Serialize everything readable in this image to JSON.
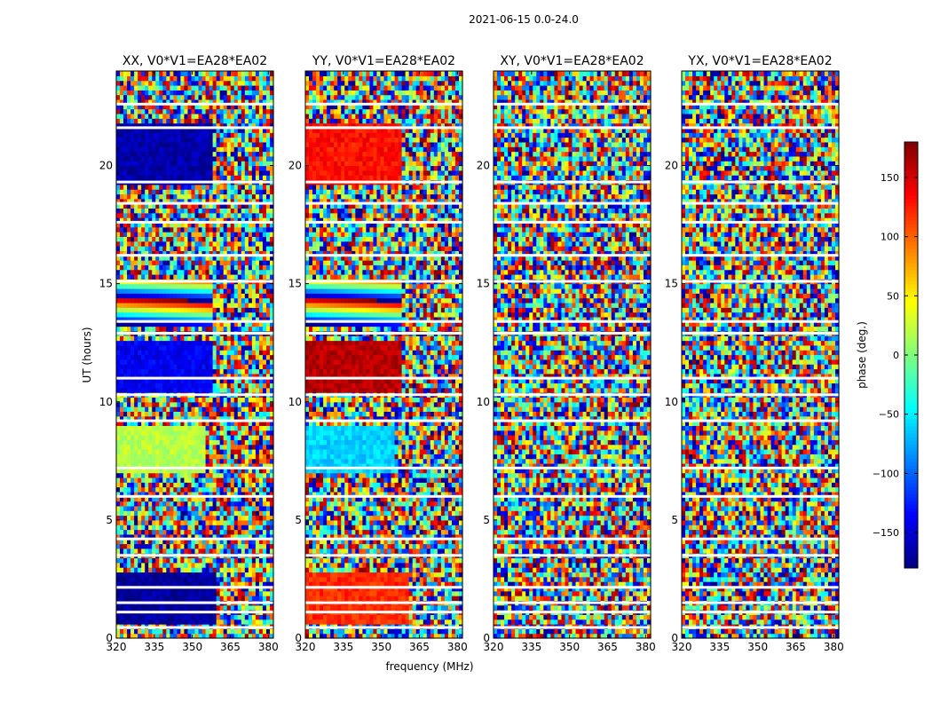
{
  "figure": {
    "suptitle": "2021-06-15 0.0-24.0",
    "ylabel": "UT (hours)",
    "xlabel": "frequency (MHz)"
  },
  "chart_data": {
    "type": "heatmap",
    "x": {
      "label": "frequency (MHz)",
      "range": [
        320,
        382
      ],
      "ticks": [
        320,
        335,
        350,
        365,
        380
      ]
    },
    "y": {
      "label": "UT (hours)",
      "range": [
        0,
        24
      ],
      "ticks": [
        0,
        5,
        10,
        15,
        20
      ]
    },
    "colorbar": {
      "label": "phase (deg.)",
      "range": [
        -180,
        180
      ],
      "ticks": [
        -150,
        -100,
        -50,
        0,
        50,
        100,
        150
      ],
      "colormap": "jet",
      "colors": [
        "#00007f",
        "#0000ff",
        "#007fff",
        "#00ffff",
        "#7fff7f",
        "#ffff00",
        "#ff7f00",
        "#ff0000",
        "#7f0000"
      ]
    },
    "panels": [
      {
        "title": "XX, V0*V1=EA28*EA02",
        "pol": "XX"
      },
      {
        "title": "YY, V0*V1=EA28*EA02",
        "pol": "YY"
      },
      {
        "title": "XY, V0*V1=EA28*EA02",
        "pol": "XY"
      },
      {
        "title": "YX, V0*V1=EA28*EA02",
        "pol": "YX"
      }
    ],
    "coherent_regions": [
      {
        "pol": "XX",
        "ut": [
          0.7,
          2.7
        ],
        "freq": [
          320,
          360
        ],
        "phase": -170
      },
      {
        "pol": "YY",
        "ut": [
          0.7,
          2.7
        ],
        "freq": [
          320,
          361
        ],
        "phase": 120
      },
      {
        "pol": "XX",
        "ut": [
          13.3,
          15.1
        ],
        "freq": [
          320,
          358
        ],
        "phase": "wrap"
      },
      {
        "pol": "YY",
        "ut": [
          13.3,
          15.1
        ],
        "freq": [
          320,
          358
        ],
        "phase": "wrap"
      },
      {
        "pol": "XX",
        "ut": [
          7.0,
          9.0
        ],
        "freq": [
          320,
          355
        ],
        "phase": 20
      },
      {
        "pol": "YY",
        "ut": [
          7.0,
          9.0
        ],
        "freq": [
          320,
          355
        ],
        "phase": -60
      },
      {
        "pol": "XX",
        "ut": [
          19.2,
          21.8
        ],
        "freq": [
          320,
          358
        ],
        "phase": -165
      },
      {
        "pol": "YY",
        "ut": [
          19.2,
          21.8
        ],
        "freq": [
          320,
          358
        ],
        "phase": 130
      },
      {
        "pol": "XX",
        "ut": [
          10.5,
          12.5
        ],
        "freq": [
          320,
          358
        ],
        "phase": -140
      },
      {
        "pol": "YY",
        "ut": [
          10.5,
          12.5
        ],
        "freq": [
          320,
          358
        ],
        "phase": 160
      }
    ],
    "flagged_ut_gaps": [
      0.45,
      1.1,
      1.5,
      2.15,
      3.5,
      4.2,
      6.0,
      7.2,
      9.2,
      10.3,
      11.0,
      12.9,
      13.4,
      15.1,
      16.2,
      17.6,
      18.4,
      19.3,
      21.6,
      22.6
    ],
    "grid": false,
    "legend": "none"
  }
}
